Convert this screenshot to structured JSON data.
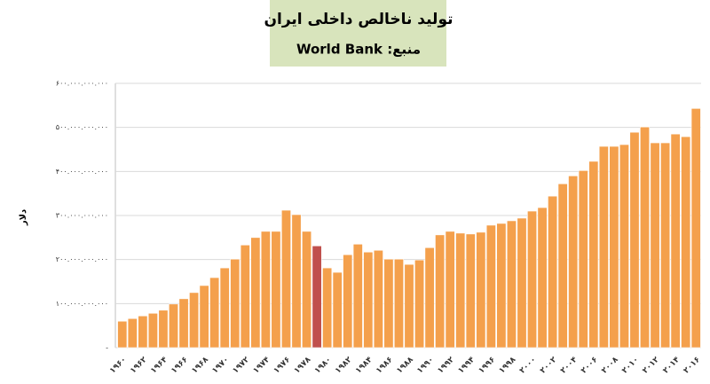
{
  "chart_data": {
    "type": "bar",
    "title": "تولید ناخالص داخلی ایران",
    "subtitle": "منبع: World Bank",
    "y_label": "دلار",
    "categories": [
      "۱۹۶۰",
      null,
      "۱۹۶۲",
      null,
      "۱۹۶۴",
      null,
      "۱۹۶۶",
      null,
      "۱۹۶۸",
      null,
      "۱۹۷۰",
      null,
      "۱۹۷۲",
      null,
      "۱۹۷۴",
      null,
      "۱۹۷۶",
      null,
      "۱۹۷۸",
      null,
      "۱۹۸۰",
      null,
      "۱۹۸۲",
      null,
      "۱۹۸۴",
      null,
      "۱۹۸۶",
      null,
      "۱۹۸۸",
      null,
      "۱۹۹۰",
      null,
      "۱۹۹۲",
      null,
      "۱۹۹۴",
      null,
      "۱۹۹۶",
      null,
      "۱۹۹۸",
      null,
      "۲۰۰۰",
      null,
      "۲۰۰۲",
      null,
      "۲۰۰۴",
      null,
      "۲۰۰۶",
      null,
      "۲۰۰۸",
      null,
      "۲۰۱۰",
      null,
      "۲۰۱۲",
      null,
      "۲۰۱۴",
      null,
      "۲۰۱۶"
    ],
    "values": [
      60000000000,
      66000000000,
      72000000000,
      78000000000,
      85000000000,
      99000000000,
      111000000000,
      125000000000,
      141000000000,
      159000000000,
      181000000000,
      201000000000,
      233000000000,
      250000000000,
      264000000000,
      264000000000,
      312000000000,
      302000000000,
      264000000000,
      231000000000,
      181000000000,
      171000000000,
      211000000000,
      235000000000,
      217000000000,
      221000000000,
      201000000000,
      201000000000,
      189000000000,
      199000000000,
      227000000000,
      256000000000,
      264000000000,
      260000000000,
      258000000000,
      262000000000,
      278000000000,
      282000000000,
      288000000000,
      294000000000,
      310000000000,
      318000000000,
      344000000000,
      372000000000,
      390000000000,
      402000000000,
      423000000000,
      457000000000,
      457000000000,
      461000000000,
      489000000000,
      501000000000,
      465000000000,
      465000000000,
      485000000000,
      479000000000,
      543000000000
    ],
    "color": "#f4a04c",
    "highlight": {
      "index": 19,
      "color": "#c0504d"
    },
    "ylim": [
      0,
      600000000000
    ],
    "yticks": [
      {
        "value": 0,
        "label": "-"
      },
      {
        "value": 100000000000,
        "label": "۱۰۰.۰۰۰.۰۰۰.۰۰۰"
      },
      {
        "value": 200000000000,
        "label": "۲۰۰.۰۰۰.۰۰۰.۰۰۰"
      },
      {
        "value": 300000000000,
        "label": "۳۰۰.۰۰۰.۰۰۰.۰۰۰"
      },
      {
        "value": 400000000000,
        "label": "۴۰۰.۰۰۰.۰۰۰.۰۰۰"
      },
      {
        "value": 500000000000,
        "label": "۵۰۰.۰۰۰.۰۰۰.۰۰۰"
      },
      {
        "value": 600000000000,
        "label": "۶۰۰.۰۰۰.۰۰۰.۰۰۰"
      }
    ],
    "grid": true
  }
}
